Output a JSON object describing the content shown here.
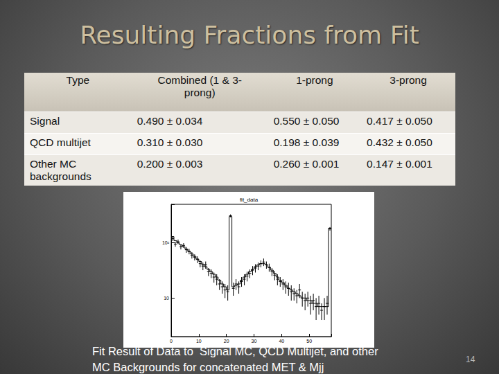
{
  "title": "Resulting Fractions from Fit",
  "table": {
    "header": [
      "Type",
      "Combined (1 & 3-prong)",
      "1-prong",
      "3-prong"
    ],
    "rows": [
      [
        "Signal",
        "0.490 ± 0.034",
        "0.550 ± 0.050",
        "0.417 ± 0.050"
      ],
      [
        "QCD multijet",
        "0.310 ± 0.030",
        "0.198 ± 0.039",
        "0.432 ± 0.050"
      ],
      [
        "Other MC backgrounds",
        "0.200 ± 0.003",
        "0.260 ± 0.001",
        "0.147 ± 0.001"
      ]
    ]
  },
  "chart_data": {
    "type": "scatter",
    "title": "fit_data",
    "bins": [
      0,
      1,
      2,
      3,
      4,
      5,
      6,
      7,
      8,
      9,
      10,
      11,
      12,
      13,
      14,
      15,
      16,
      17,
      18,
      19,
      20,
      21,
      22,
      23,
      24,
      25,
      26,
      27,
      28,
      29,
      30,
      31,
      32,
      33,
      34,
      35,
      36,
      37,
      38,
      39,
      40,
      41,
      42,
      43,
      44,
      45,
      46,
      47,
      48,
      49,
      50,
      51,
      52,
      53,
      54,
      55,
      56,
      57,
      58
    ],
    "series": [
      {
        "type": "scatter",
        "marker": "cross",
        "color": "#000000",
        "values": [
          120,
          95,
          105,
          85,
          90,
          75,
          70,
          60,
          55,
          50,
          42,
          38,
          40,
          30,
          28,
          24,
          22,
          18,
          16,
          14,
          13,
          310,
          15,
          18,
          16,
          20,
          22,
          25,
          28,
          32,
          35,
          38,
          42,
          45,
          40,
          36,
          30,
          26,
          22,
          20,
          18,
          16,
          15,
          13,
          12,
          11,
          14,
          10,
          9,
          10,
          8,
          9,
          7,
          8,
          6,
          7,
          8,
          180
        ],
        "errors": [
          11,
          10,
          10,
          9,
          9,
          9,
          8,
          8,
          7,
          7,
          6,
          6,
          6,
          5,
          5,
          5,
          5,
          4,
          4,
          4,
          4,
          18,
          4,
          4,
          4,
          4,
          5,
          5,
          5,
          6,
          6,
          6,
          6,
          7,
          6,
          6,
          5,
          5,
          5,
          4,
          4,
          4,
          4,
          4,
          3,
          3,
          4,
          3,
          3,
          3,
          3,
          3,
          3,
          3,
          2,
          3,
          3,
          13
        ]
      },
      {
        "type": "line",
        "line_style": "step",
        "color": "#000000",
        "values": [
          130,
          110,
          100,
          92,
          85,
          77,
          70,
          63,
          57,
          51,
          46,
          41,
          37,
          33,
          30,
          27,
          24,
          21,
          18,
          16,
          14,
          300,
          16,
          17,
          18,
          21,
          24,
          27,
          30,
          33,
          37,
          40,
          42,
          42,
          40,
          36,
          32,
          28,
          24,
          21,
          19,
          17,
          15,
          14,
          13,
          12,
          11,
          10,
          10,
          9,
          9,
          8,
          8,
          7,
          7,
          7,
          7,
          185
        ]
      }
    ],
    "xlim": [
      0,
      58
    ],
    "ylim": [
      2,
      500
    ],
    "xticks": [
      0,
      10,
      20,
      30,
      40,
      50
    ],
    "yticks": [
      10,
      {
        "value": 100,
        "label": "10²"
      }
    ],
    "log": "y",
    "grid": false
  },
  "caption": [
    "Fit Result of Data to  Signal MC, QCD Multijet, and other",
    "MC Backgrounds for concatenated MET & Mjj"
  ],
  "page": "14"
}
